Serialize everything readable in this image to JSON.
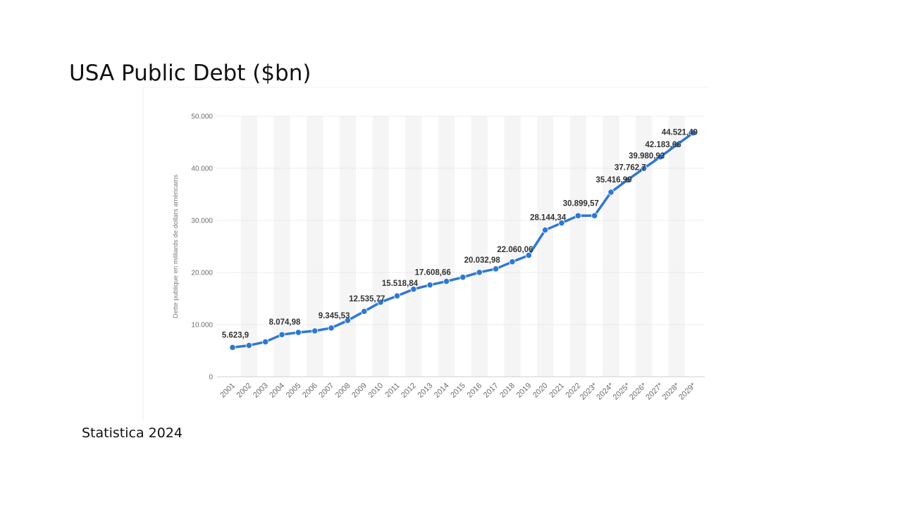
{
  "slide": {
    "title": "USA Public Debt ($bn)",
    "source": "Statistica 2024"
  },
  "chart_data": {
    "type": "line",
    "title": "",
    "xlabel": "",
    "ylabel": "Dette publique en milliards de dollars américains",
    "ylim": [
      0,
      50000
    ],
    "yticks": [
      0,
      10000,
      20000,
      30000,
      40000,
      50000
    ],
    "ytick_labels": [
      "0",
      "10.000",
      "20.000",
      "30.000",
      "40.000",
      "50.000"
    ],
    "grid": "horizontal dotted, alternating vertical bands",
    "line_color": "#2f78d2",
    "categories": [
      "2001",
      "2002",
      "2003",
      "2004",
      "2005",
      "2006",
      "2007",
      "2008",
      "2009",
      "2010",
      "2011",
      "2012",
      "2013",
      "2014",
      "2015",
      "2016",
      "2017",
      "2018",
      "2019",
      "2020",
      "2021",
      "2022",
      "2023*",
      "2024*",
      "2025*",
      "2026*",
      "2027*",
      "2028*",
      "2029*"
    ],
    "values": [
      5623.9,
      6000,
      6700,
      8074.98,
      8500,
      8800,
      9345.53,
      10800,
      12535.77,
      14300,
      15518.84,
      16800,
      17608.66,
      18300,
      19100,
      20032.98,
      20700,
      22060.06,
      23300,
      28144.34,
      29500,
      30899.57,
      30900,
      35416.99,
      37762.7,
      39980.93,
      42183.66,
      44521.49,
      46800
    ],
    "data_labels": [
      {
        "index": 0,
        "text": "5.623,9"
      },
      {
        "index": 3,
        "text": "8.074,98"
      },
      {
        "index": 6,
        "text": "9.345,53"
      },
      {
        "index": 8,
        "text": "12.535,77"
      },
      {
        "index": 10,
        "text": "15.518,84"
      },
      {
        "index": 12,
        "text": "17.608,66"
      },
      {
        "index": 15,
        "text": "20.032,98"
      },
      {
        "index": 17,
        "text": "22.060,06"
      },
      {
        "index": 19,
        "text": "28.144,34"
      },
      {
        "index": 21,
        "text": "30.899,57"
      },
      {
        "index": 23,
        "text": "35.416,99"
      },
      {
        "index": 24,
        "text": "37.762,7"
      },
      {
        "index": 25,
        "text": "39.980,93"
      },
      {
        "index": 26,
        "text": "42.183,66"
      },
      {
        "index": 27,
        "text": "44.521,49"
      }
    ]
  }
}
